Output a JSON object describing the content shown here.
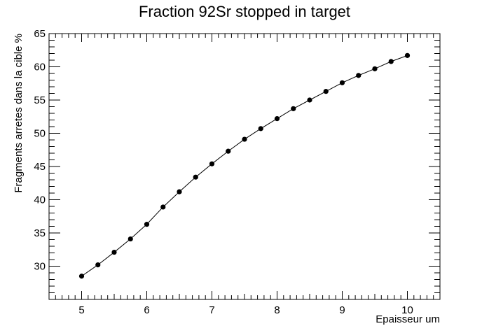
{
  "chart_data": {
    "type": "line",
    "title": "Fraction 92Sr stopped in target",
    "xlabel": "Epaisseur um",
    "ylabel": "Fragments arretes dans la cible %",
    "xlim": [
      4.5,
      10.5
    ],
    "ylim": [
      25,
      65
    ],
    "xticks": [
      5,
      6,
      7,
      8,
      9,
      10
    ],
    "yticks": [
      30,
      35,
      40,
      45,
      50,
      55,
      60,
      65
    ],
    "grid": false,
    "series": [
      {
        "marker": "circle",
        "color": "#000000",
        "x": [
          5.0,
          5.25,
          5.5,
          5.75,
          6.0,
          6.25,
          6.5,
          6.75,
          7.0,
          7.25,
          7.5,
          7.75,
          8.0,
          8.25,
          8.5,
          8.75,
          9.0,
          9.25,
          9.5,
          9.75,
          10.0
        ],
        "y": [
          28.5,
          30.2,
          32.1,
          34.1,
          36.3,
          38.9,
          41.2,
          43.4,
          45.4,
          47.3,
          49.1,
          50.7,
          52.2,
          53.7,
          55.0,
          56.3,
          57.6,
          58.7,
          59.7,
          60.8,
          61.7
        ]
      }
    ]
  }
}
